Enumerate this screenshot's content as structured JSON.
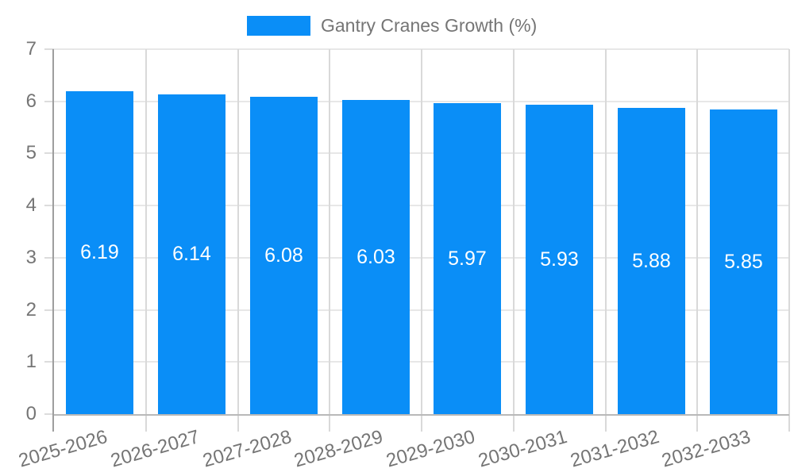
{
  "legend": {
    "label": "Gantry Cranes Growth (%)",
    "swatch_color": "#0a8ef7"
  },
  "chart_data": {
    "type": "bar",
    "title": "",
    "categories": [
      "2025-2026",
      "2026-2027",
      "2027-2028",
      "2028-2029",
      "2029-2030",
      "2030-2031",
      "2031-2032",
      "2032-2033"
    ],
    "series": [
      {
        "name": "Gantry Cranes Growth (%)",
        "values": [
          6.19,
          6.14,
          6.08,
          6.03,
          5.97,
          5.93,
          5.88,
          5.85
        ]
      }
    ],
    "value_labels": [
      "6.19",
      "6.14",
      "6.08",
      "6.03",
      "5.97",
      "5.93",
      "5.88",
      "5.85"
    ],
    "xlabel": "",
    "ylabel": "",
    "ylim": [
      0,
      7
    ],
    "yticks": [
      0,
      1,
      2,
      3,
      4,
      5,
      6,
      7
    ],
    "grid": true,
    "legend_position": "top",
    "colors": {
      "bar": "#0a8ef7",
      "value_label_text": "#ffffff",
      "axis_text": "#757575",
      "grid_horizontal": "#e7e7e7",
      "grid_vertical": "#d9d9d9",
      "y_axis_line": "#9e9e9e",
      "x_axis_line": "#b9b9b9",
      "tick": "#dcdcdc",
      "background": "#ffffff"
    }
  }
}
